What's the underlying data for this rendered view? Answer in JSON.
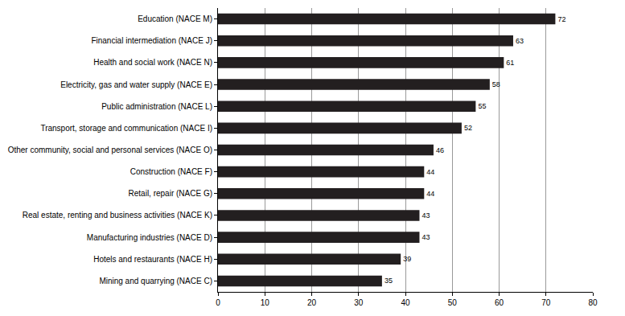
{
  "chart_data": {
    "type": "bar",
    "orientation": "horizontal",
    "categories": [
      "Education (NACE M)",
      "Financial intermediation (NACE J)",
      "Health and social work (NACE N)",
      "Electricity, gas and water supply (NACE E)",
      "Public administration (NACE L)",
      "Transport, storage and communication (NACE I)",
      "Other community, social and personal services (NACE O)",
      "Construction (NACE F)",
      "Retail, repair (NACE G)",
      "Real estate, renting and business activities (NACE K)",
      "Manufacturing industries (NACE D)",
      "Hotels and restaurants (NACE H)",
      "Mining and quarrying (NACE C)"
    ],
    "values": [
      72,
      63,
      61,
      58,
      55,
      52,
      46,
      44,
      44,
      43,
      43,
      39,
      35
    ],
    "color": "#231f20",
    "xlim": [
      0,
      80
    ],
    "xticks": [
      0,
      10,
      20,
      30,
      40,
      50,
      60,
      70,
      80
    ],
    "grid": true,
    "data_labels": true
  }
}
